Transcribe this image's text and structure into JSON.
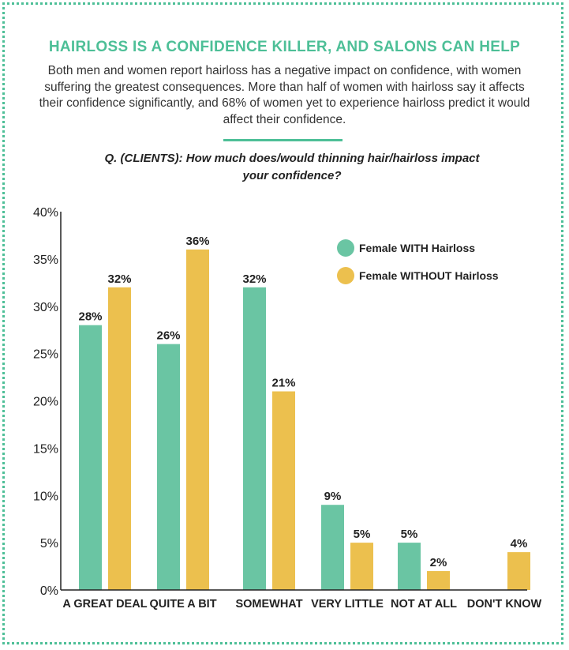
{
  "title": "HAIRLOSS IS A CONFIDENCE KILLER, AND SALONS CAN HELP",
  "intro": "Both men and women report hairloss has a negative impact on confidence, with women suffering the greatest consequences. More than half of women with hairloss say it affects their confidence significantly, and 68% of women yet to experience hairloss predict it would affect their confidence.",
  "colors": {
    "accent": "#4dbf97",
    "series_with": "#6ac5a3",
    "series_without": "#ecc04e",
    "text": "#222222"
  },
  "chart_data": {
    "type": "bar",
    "title": "Q. (CLIENTS): How much does/would thinning hair/hairloss impact your confidence?",
    "xlabel": "",
    "ylabel": "",
    "ylim": [
      0,
      40
    ],
    "yticks": [
      "0%",
      "5%",
      "10%",
      "15%",
      "20%",
      "25%",
      "30%",
      "35%",
      "40%"
    ],
    "ytick_values": [
      0,
      5,
      10,
      15,
      20,
      25,
      30,
      35,
      40
    ],
    "grid": false,
    "legend_position": "top-right",
    "categories": [
      "A GREAT DEAL",
      "QUITE A BIT",
      "SOMEWHAT",
      "VERY LITTLE",
      "NOT AT ALL",
      "DON'T KNOW"
    ],
    "series": [
      {
        "name": "Female WITH Hairloss",
        "color": "#6ac5a3",
        "values": [
          28,
          26,
          32,
          9,
          5,
          null
        ],
        "labels": [
          "28%",
          "26%",
          "32%",
          "9%",
          "5%",
          ""
        ]
      },
      {
        "name": "Female WITHOUT Hairloss",
        "color": "#ecc04e",
        "values": [
          32,
          36,
          21,
          5,
          2,
          4
        ],
        "labels": [
          "32%",
          "36%",
          "21%",
          "5%",
          "2%",
          "4%"
        ]
      }
    ]
  }
}
